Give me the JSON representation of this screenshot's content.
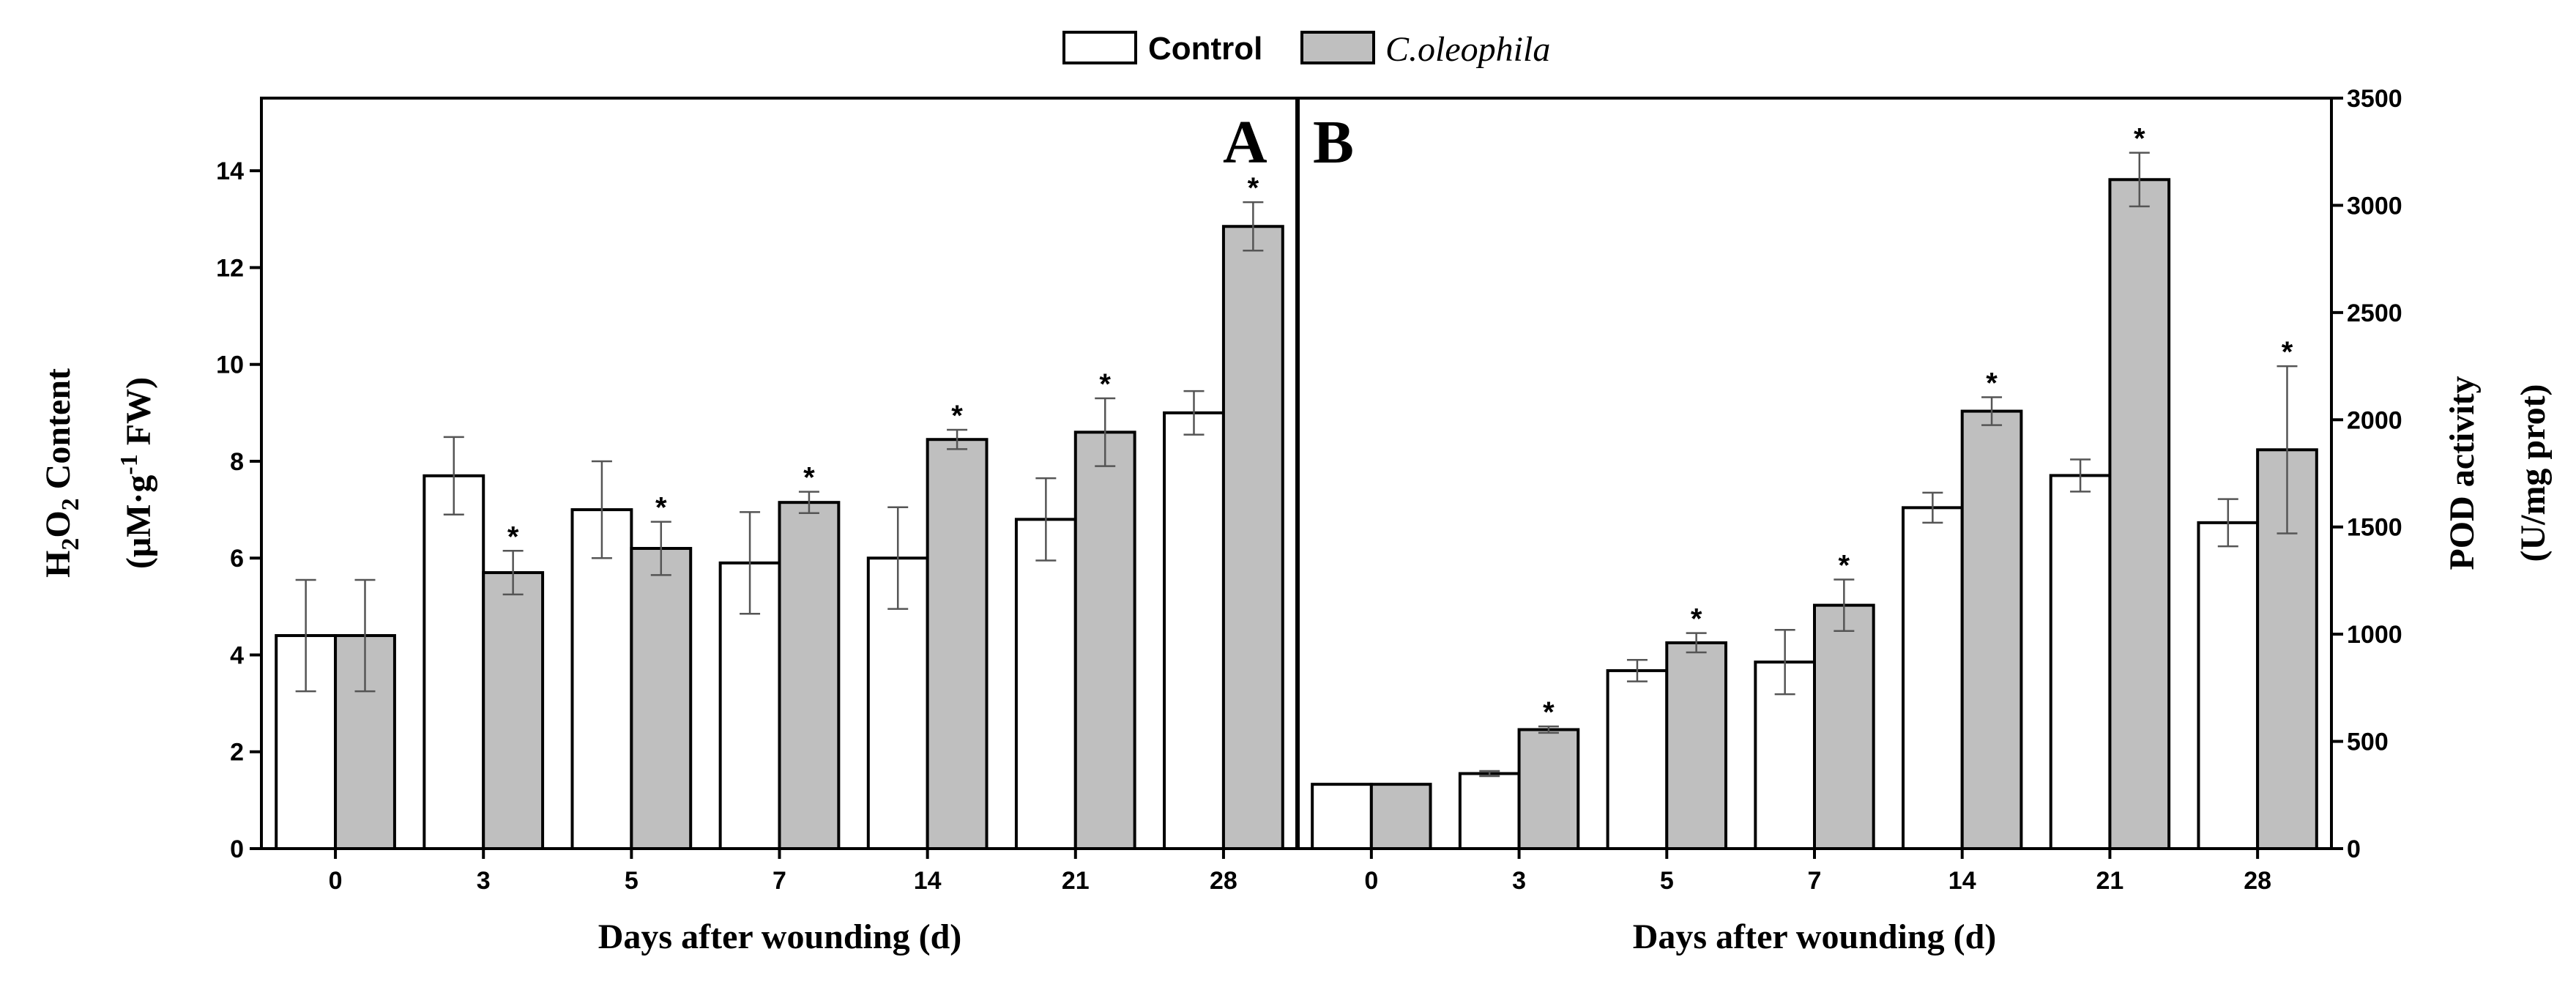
{
  "colors": {
    "control": "#ffffff",
    "treatment": "#bfbfbf",
    "stroke": "#000000",
    "error": "#555555"
  },
  "legend": {
    "control": "Control",
    "treatment": "C.oleophila"
  },
  "chart_data": [
    {
      "panel": "A",
      "type": "bar",
      "categories": [
        "0",
        "3",
        "5",
        "7",
        "14",
        "21",
        "28"
      ],
      "series": [
        {
          "name": "Control",
          "values": [
            4.4,
            7.7,
            7.0,
            5.9,
            6.0,
            6.8,
            9.0
          ],
          "errors": [
            1.15,
            0.8,
            1.0,
            1.05,
            1.05,
            0.85,
            0.45
          ]
        },
        {
          "name": "C.oleophila",
          "values": [
            4.4,
            5.7,
            6.2,
            7.15,
            8.45,
            8.6,
            12.85
          ],
          "errors": [
            1.15,
            0.45,
            0.55,
            0.22,
            0.2,
            0.7,
            0.5
          ]
        }
      ],
      "significance": [
        "",
        "*",
        "*",
        "*",
        "*",
        "*",
        "*"
      ],
      "ylim": [
        0,
        15.5
      ],
      "yticks": [
        "0",
        "2",
        "4",
        "6",
        "8",
        "10",
        "12",
        "14"
      ],
      "xlabel": "Days after wounding (d)",
      "ylabel_line1": "H",
      "ylabel_sub1": "2",
      "ylabel_mid": "O",
      "ylabel_sub2": "2",
      "ylabel_end": " Content",
      "ylabel2_start": "(μM·g",
      "ylabel2_sup": "-1",
      "ylabel2_end": " FW)"
    },
    {
      "panel": "B",
      "type": "bar",
      "categories": [
        "0",
        "3",
        "5",
        "7",
        "14",
        "21",
        "28"
      ],
      "series": [
        {
          "name": "Control",
          "values": [
            300,
            350,
            830,
            870,
            1590,
            1740,
            1520
          ],
          "errors": [
            0,
            12,
            50,
            150,
            70,
            75,
            110
          ]
        },
        {
          "name": "C.oleophila",
          "values": [
            300,
            555,
            960,
            1135,
            2040,
            3120,
            1860
          ],
          "errors": [
            0,
            15,
            45,
            120,
            65,
            125,
            390
          ]
        }
      ],
      "significance": [
        "",
        "*",
        "*",
        "*",
        "*",
        "*",
        "*"
      ],
      "ylim": [
        0,
        3500
      ],
      "yticks": [
        "0",
        "500",
        "1000",
        "1500",
        "2000",
        "2500",
        "3000",
        "3500"
      ],
      "xlabel": "Days after wounding (d)",
      "ylabel_line1": "POD activity",
      "ylabel_line2": "(U/mg prot)"
    }
  ]
}
